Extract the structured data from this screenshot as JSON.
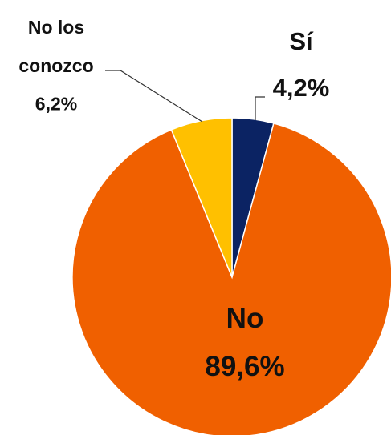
{
  "chart_data": {
    "type": "pie",
    "categories": [
      "Sí",
      "No",
      "No los conozco"
    ],
    "values": [
      4.2,
      89.6,
      6.2
    ],
    "value_labels": [
      "4,2%",
      "89,6%",
      "6,2%"
    ],
    "colors": [
      "#0b2363",
      "#f06000",
      "#ffc000"
    ]
  }
}
